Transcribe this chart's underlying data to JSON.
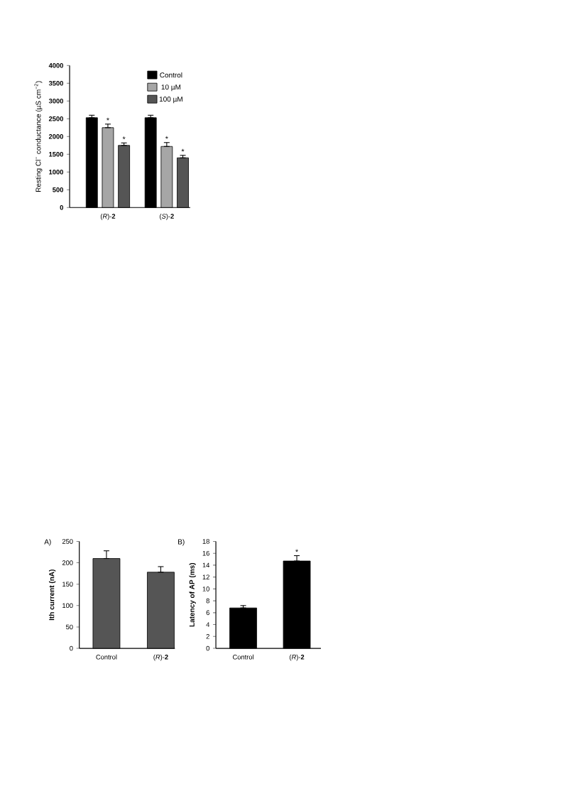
{
  "chart_data": [
    {
      "type": "bar",
      "ylabel": "Resting Cl$^{−}$ conductance (µS cm$^{−2}$)",
      "categories": [
        "(*R*)-**2**",
        "(*S*)-**2**"
      ],
      "series": [
        {
          "name": "Control",
          "color": "#000000",
          "values": [
            2530,
            2530
          ],
          "errors": [
            [
              2530,
              2600
            ],
            [
              2530,
              2600
            ]
          ],
          "value_labels": [
            null,
            null
          ]
        },
        {
          "name": "10 µM",
          "color": "#a6a6a6",
          "values": [
            2250,
            1720
          ],
          "errors": [
            [
              2250,
              2350
            ],
            [
              1720,
              1830
            ]
          ],
          "value_labels": [
            "*",
            "*"
          ]
        },
        {
          "name": "100 µM",
          "color": "#555555",
          "values": [
            1750,
            1400
          ],
          "errors": [
            [
              1750,
              1820
            ],
            [
              1400,
              1470
            ]
          ],
          "value_labels": [
            "*",
            "*"
          ]
        }
      ],
      "ylim": [
        0,
        4000
      ],
      "yticks": [
        0,
        500,
        1000,
        1500,
        2000,
        2500,
        3000,
        3500,
        4000
      ],
      "legend": "top right"
    },
    {
      "type": "bar",
      "title": "A)",
      "ylabel": "Ith current (nA)",
      "categories": [
        "Control",
        "(*R*)-**2**"
      ],
      "color": "#555555",
      "values": [
        210,
        178
      ],
      "errors": [
        [
          210,
          228
        ],
        [
          178,
          191
        ]
      ],
      "ylim": [
        0,
        250
      ],
      "yticks": [
        0,
        50,
        100,
        150,
        200,
        250
      ]
    },
    {
      "type": "bar",
      "title": "B)",
      "ylabel": "Latency of AP (ms)",
      "categories": [
        "Control",
        "(*R*)-**2**"
      ],
      "color": "#000000",
      "values": [
        6.8,
        14.7
      ],
      "errors": [
        [
          6.8,
          7.2
        ],
        [
          14.7,
          15.6
        ]
      ],
      "value_labels": [
        null,
        "*"
      ],
      "ylim": [
        0,
        18
      ],
      "yticks": [
        0,
        2,
        4,
        6,
        8,
        10,
        12,
        14,
        16,
        18
      ]
    }
  ]
}
